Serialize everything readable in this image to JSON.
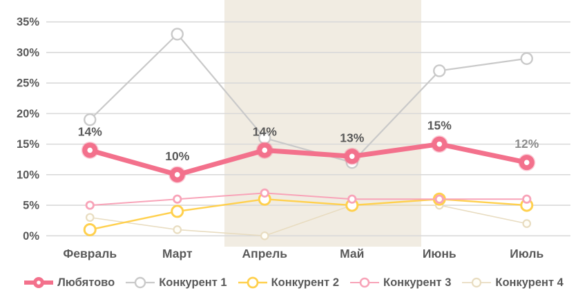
{
  "chart_data": {
    "type": "line",
    "title": "",
    "categories": [
      "Февраль",
      "Март",
      "Апрель",
      "Май",
      "Июнь",
      "Июль"
    ],
    "y_axis": {
      "min": 0,
      "max": 35,
      "step": 5,
      "tick_suffix": "%",
      "tick_labels": [
        "0%",
        "5%",
        "10%",
        "15%",
        "20%",
        "25%",
        "30%",
        "35%"
      ]
    },
    "grid": true,
    "legend_position": "bottom",
    "highlight_region": {
      "covers": [
        "Апрель",
        "Май"
      ],
      "color": "#F1ECE2"
    },
    "series": [
      {
        "name": "Любятово",
        "color": "#F3718C",
        "values": [
          14,
          10,
          14,
          13,
          15,
          12
        ],
        "data_labels": [
          "14%",
          "10%",
          "14%",
          "13%",
          "15%",
          "12%"
        ],
        "data_label_colors": [
          "#595959",
          "#595959",
          "#595959",
          "#595959",
          "#595959",
          "#8C8C8C"
        ]
      },
      {
        "name": "Конкурент 1",
        "color": "#C9C9C9",
        "values": [
          19,
          33,
          16,
          12,
          27,
          29
        ]
      },
      {
        "name": "Конкурент 2",
        "color": "#FFD04D",
        "values": [
          1,
          4,
          6,
          5,
          6,
          5
        ]
      },
      {
        "name": "Конкурент 3",
        "color": "#F8A3B8",
        "values": [
          5,
          6,
          7,
          6,
          6,
          6
        ]
      },
      {
        "name": "Конкурент 4",
        "color": "#E8DCC0",
        "values": [
          3,
          1,
          0,
          5,
          5,
          2
        ]
      }
    ]
  },
  "colors": {
    "background": "#FFFFFF",
    "grid": "#D9D9D9",
    "text": "#595959",
    "muted_label": "#8C8C8C",
    "highlight": "#F1ECE2"
  }
}
